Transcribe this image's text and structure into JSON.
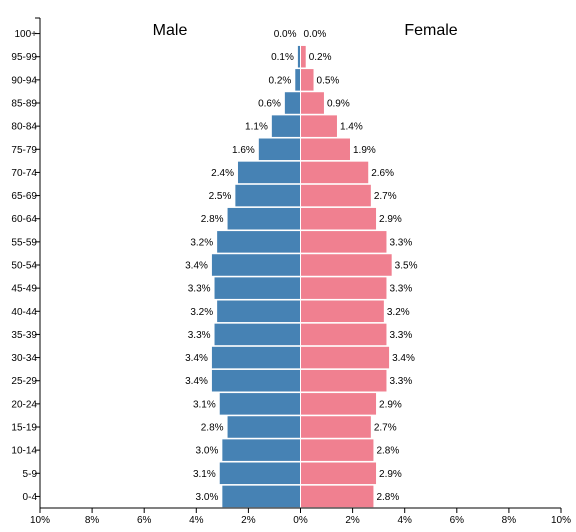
{
  "chart_data": {
    "type": "bar",
    "orientation": "horizontal-population-pyramid",
    "categories": [
      "100+",
      "95-99",
      "90-94",
      "85-89",
      "80-84",
      "75-79",
      "70-74",
      "65-69",
      "60-64",
      "55-59",
      "50-54",
      "45-49",
      "40-44",
      "35-39",
      "30-34",
      "25-29",
      "20-24",
      "15-19",
      "10-14",
      "5-9",
      "0-4"
    ],
    "series": [
      {
        "name": "Male",
        "color": "#4682b4",
        "side": "left",
        "values": [
          0.0,
          0.1,
          0.2,
          0.6,
          1.1,
          1.6,
          2.4,
          2.5,
          2.8,
          3.2,
          3.4,
          3.3,
          3.2,
          3.3,
          3.4,
          3.4,
          3.1,
          2.8,
          3.0,
          3.1,
          3.0
        ],
        "labels": [
          "0.0%",
          "0.1%",
          "0.2%",
          "0.6%",
          "1.1%",
          "1.6%",
          "2.4%",
          "2.5%",
          "2.8%",
          "3.2%",
          "3.4%",
          "3.3%",
          "3.2%",
          "3.3%",
          "3.4%",
          "3.4%",
          "3.1%",
          "2.8%",
          "3.0%",
          "3.1%",
          "3.0%"
        ]
      },
      {
        "name": "Female",
        "color": "#f08090",
        "side": "right",
        "values": [
          0.0,
          0.2,
          0.5,
          0.9,
          1.4,
          1.9,
          2.6,
          2.7,
          2.9,
          3.3,
          3.5,
          3.3,
          3.2,
          3.3,
          3.4,
          3.3,
          2.9,
          2.7,
          2.8,
          2.9,
          2.8
        ],
        "labels": [
          "0.0%",
          "0.2%",
          "0.5%",
          "0.9%",
          "1.4%",
          "1.9%",
          "2.6%",
          "2.7%",
          "2.9%",
          "3.3%",
          "3.5%",
          "3.3%",
          "3.2%",
          "3.3%",
          "3.4%",
          "3.3%",
          "2.9%",
          "2.7%",
          "2.8%",
          "2.9%",
          "2.8%"
        ]
      }
    ],
    "xlim": [
      -10,
      10
    ],
    "xticks": [
      -10,
      -8,
      -6,
      -4,
      -2,
      0,
      2,
      4,
      6,
      8,
      10
    ],
    "xtick_labels": [
      "10%",
      "8%",
      "6%",
      "4%",
      "2%",
      "0%",
      "2%",
      "4%",
      "6%",
      "8%",
      "10%"
    ],
    "legend": {
      "left": "Male",
      "right": "Female",
      "placement": "top"
    },
    "grid": false
  }
}
